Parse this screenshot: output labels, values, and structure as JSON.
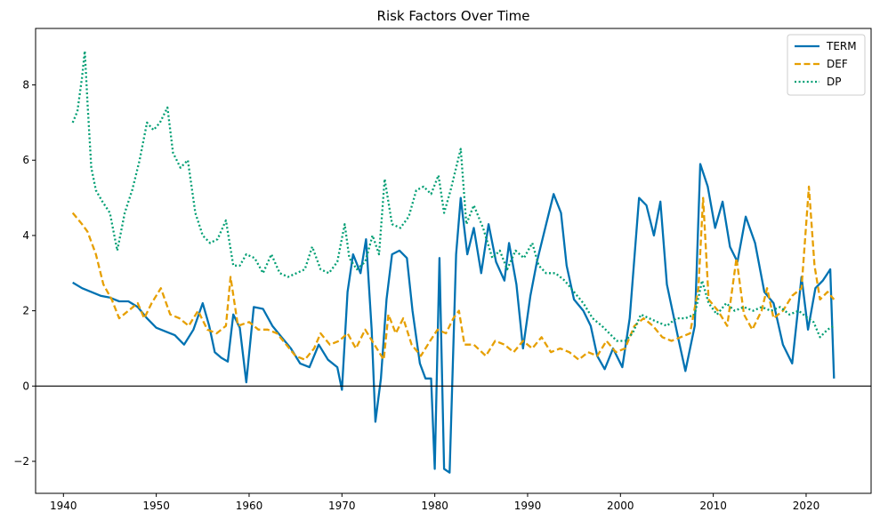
{
  "chart_data": {
    "type": "line",
    "title": "Risk Factors Over Time",
    "xlabel": "",
    "ylabel": "",
    "xlim": [
      1937,
      2027
    ],
    "ylim": [
      -2.85,
      9.5
    ],
    "x_ticks": [
      1940,
      1950,
      1960,
      1970,
      1980,
      1990,
      2000,
      2010,
      2020
    ],
    "y_ticks": [
      -2,
      0,
      2,
      4,
      6,
      8
    ],
    "x_tick_labels": [
      "1940",
      "1950",
      "1960",
      "1970",
      "1980",
      "1990",
      "2000",
      "2010",
      "2020"
    ],
    "y_tick_labels": [
      "−2",
      "0",
      "2",
      "4",
      "6",
      "8"
    ],
    "zero_line": 0,
    "grid": false,
    "legend_position": "top-right",
    "series": [
      {
        "name": "TERM",
        "color": "#0072b2",
        "style": "solid",
        "points": [
          [
            1941,
            2.75
          ],
          [
            1942,
            2.6
          ],
          [
            1943,
            2.5
          ],
          [
            1944,
            2.4
          ],
          [
            1945,
            2.35
          ],
          [
            1946,
            2.25
          ],
          [
            1947,
            2.25
          ],
          [
            1948,
            2.1
          ],
          [
            1949,
            1.8
          ],
          [
            1950,
            1.55
          ],
          [
            1951,
            1.45
          ],
          [
            1952,
            1.35
          ],
          [
            1953,
            1.1
          ],
          [
            1954,
            1.5
          ],
          [
            1955,
            2.2
          ],
          [
            1955.7,
            1.6
          ],
          [
            1956.3,
            0.9
          ],
          [
            1957,
            0.75
          ],
          [
            1957.7,
            0.65
          ],
          [
            1958.3,
            1.9
          ],
          [
            1959,
            1.55
          ],
          [
            1959.7,
            0.1
          ],
          [
            1960.5,
            2.1
          ],
          [
            1961.5,
            2.05
          ],
          [
            1962.5,
            1.6
          ],
          [
            1963.5,
            1.3
          ],
          [
            1964.5,
            1.0
          ],
          [
            1965.5,
            0.6
          ],
          [
            1966.5,
            0.5
          ],
          [
            1967.5,
            1.1
          ],
          [
            1968.5,
            0.7
          ],
          [
            1969.5,
            0.5
          ],
          [
            1970,
            -0.1
          ],
          [
            1970.6,
            2.5
          ],
          [
            1971.2,
            3.5
          ],
          [
            1972,
            3.0
          ],
          [
            1972.6,
            3.9
          ],
          [
            1973.2,
            1.5
          ],
          [
            1973.6,
            -0.95
          ],
          [
            1974.2,
            0.2
          ],
          [
            1974.8,
            2.3
          ],
          [
            1975.4,
            3.5
          ],
          [
            1976.2,
            3.6
          ],
          [
            1977,
            3.4
          ],
          [
            1977.6,
            2.0
          ],
          [
            1978.4,
            0.6
          ],
          [
            1979,
            0.2
          ],
          [
            1979.6,
            0.2
          ],
          [
            1980,
            -2.2
          ],
          [
            1980.5,
            3.4
          ],
          [
            1981,
            -2.2
          ],
          [
            1981.6,
            -2.3
          ],
          [
            1982.3,
            3.5
          ],
          [
            1982.8,
            5.0
          ],
          [
            1983.5,
            3.5
          ],
          [
            1984.2,
            4.2
          ],
          [
            1985,
            3.0
          ],
          [
            1985.8,
            4.3
          ],
          [
            1986.6,
            3.3
          ],
          [
            1987.5,
            2.8
          ],
          [
            1988,
            3.8
          ],
          [
            1988.8,
            2.7
          ],
          [
            1989.5,
            1.0
          ],
          [
            1990.3,
            2.4
          ],
          [
            1991,
            3.3
          ],
          [
            1992,
            4.3
          ],
          [
            1992.8,
            5.1
          ],
          [
            1993.6,
            4.6
          ],
          [
            1994.2,
            3.2
          ],
          [
            1995,
            2.3
          ],
          [
            1996,
            2.0
          ],
          [
            1996.8,
            1.6
          ],
          [
            1997.5,
            0.8
          ],
          [
            1998.3,
            0.45
          ],
          [
            1999.2,
            1.0
          ],
          [
            2000.2,
            0.5
          ],
          [
            2001,
            1.8
          ],
          [
            2002,
            5.0
          ],
          [
            2002.8,
            4.8
          ],
          [
            2003.6,
            4.0
          ],
          [
            2004.3,
            4.9
          ],
          [
            2005,
            2.7
          ],
          [
            2006.2,
            1.3
          ],
          [
            2007,
            0.4
          ],
          [
            2008,
            1.6
          ],
          [
            2008.6,
            5.9
          ],
          [
            2009.4,
            5.3
          ],
          [
            2010.2,
            4.2
          ],
          [
            2011,
            4.9
          ],
          [
            2011.8,
            3.7
          ],
          [
            2012.6,
            3.3
          ],
          [
            2013.5,
            4.5
          ],
          [
            2014.5,
            3.8
          ],
          [
            2015.5,
            2.5
          ],
          [
            2016.5,
            2.2
          ],
          [
            2017.5,
            1.1
          ],
          [
            2018.5,
            0.6
          ],
          [
            2019.5,
            2.9
          ],
          [
            2020.2,
            1.5
          ],
          [
            2021,
            2.6
          ],
          [
            2021.8,
            2.8
          ],
          [
            2022.6,
            3.1
          ],
          [
            2023,
            0.2
          ]
        ]
      },
      {
        "name": "DEF",
        "color": "#e69f00",
        "style": "dashed",
        "points": [
          [
            1941,
            4.6
          ],
          [
            1942,
            4.3
          ],
          [
            1942.6,
            4.1
          ],
          [
            1943.5,
            3.5
          ],
          [
            1944.3,
            2.7
          ],
          [
            1945.2,
            2.3
          ],
          [
            1946,
            1.8
          ],
          [
            1947,
            2.0
          ],
          [
            1948,
            2.2
          ],
          [
            1948.7,
            1.8
          ],
          [
            1949.5,
            2.2
          ],
          [
            1950.5,
            2.6
          ],
          [
            1951.5,
            1.9
          ],
          [
            1952.5,
            1.8
          ],
          [
            1953.5,
            1.6
          ],
          [
            1954.5,
            2.0
          ],
          [
            1955.5,
            1.5
          ],
          [
            1956.5,
            1.4
          ],
          [
            1957.5,
            1.6
          ],
          [
            1958,
            2.9
          ],
          [
            1958.8,
            1.6
          ],
          [
            1960,
            1.7
          ],
          [
            1961,
            1.5
          ],
          [
            1962,
            1.5
          ],
          [
            1963,
            1.4
          ],
          [
            1964,
            1.1
          ],
          [
            1965,
            0.8
          ],
          [
            1966,
            0.7
          ],
          [
            1967,
            1.0
          ],
          [
            1967.7,
            1.4
          ],
          [
            1968.7,
            1.1
          ],
          [
            1969.7,
            1.2
          ],
          [
            1970.6,
            1.4
          ],
          [
            1971.5,
            1.0
          ],
          [
            1972.5,
            1.5
          ],
          [
            1973.5,
            1.1
          ],
          [
            1974.5,
            0.7
          ],
          [
            1975,
            1.9
          ],
          [
            1975.8,
            1.4
          ],
          [
            1976.6,
            1.8
          ],
          [
            1977.5,
            1.1
          ],
          [
            1978.5,
            0.8
          ],
          [
            1979.5,
            1.2
          ],
          [
            1980.3,
            1.5
          ],
          [
            1981.2,
            1.4
          ],
          [
            1982,
            1.8
          ],
          [
            1982.6,
            2.0
          ],
          [
            1983.2,
            1.1
          ],
          [
            1984.2,
            1.1
          ],
          [
            1985.5,
            0.8
          ],
          [
            1986.5,
            1.2
          ],
          [
            1987.5,
            1.1
          ],
          [
            1988.5,
            0.9
          ],
          [
            1989.5,
            1.2
          ],
          [
            1990.5,
            1.0
          ],
          [
            1991.5,
            1.3
          ],
          [
            1992.5,
            0.9
          ],
          [
            1993.5,
            1.0
          ],
          [
            1994.5,
            0.9
          ],
          [
            1995.5,
            0.7
          ],
          [
            1996.5,
            0.9
          ],
          [
            1997.5,
            0.8
          ],
          [
            1998.5,
            1.2
          ],
          [
            1999.5,
            0.9
          ],
          [
            2000.5,
            1.0
          ],
          [
            2001.5,
            1.6
          ],
          [
            2002.5,
            1.8
          ],
          [
            2003.5,
            1.6
          ],
          [
            2004.5,
            1.3
          ],
          [
            2005.5,
            1.2
          ],
          [
            2006.5,
            1.3
          ],
          [
            2007.5,
            1.4
          ],
          [
            2008.4,
            2.6
          ],
          [
            2008.9,
            5.0
          ],
          [
            2009.5,
            2.3
          ],
          [
            2010.5,
            2.0
          ],
          [
            2011.5,
            1.6
          ],
          [
            2012.5,
            3.4
          ],
          [
            2013.3,
            1.9
          ],
          [
            2014.2,
            1.5
          ],
          [
            2015.2,
            2.0
          ],
          [
            2015.8,
            2.6
          ],
          [
            2016.5,
            1.8
          ],
          [
            2017.5,
            2.0
          ],
          [
            2018.5,
            2.4
          ],
          [
            2019.5,
            2.6
          ],
          [
            2020.3,
            5.3
          ],
          [
            2020.9,
            3.2
          ],
          [
            2021.5,
            2.3
          ],
          [
            2022.3,
            2.5
          ],
          [
            2023,
            2.3
          ]
        ]
      },
      {
        "name": "DP",
        "color": "#009e73",
        "style": "dotted",
        "points": [
          [
            1941,
            7.0
          ],
          [
            1941.5,
            7.3
          ],
          [
            1942,
            8.2
          ],
          [
            1942.3,
            8.9
          ],
          [
            1942.6,
            7.5
          ],
          [
            1943,
            5.8
          ],
          [
            1943.5,
            5.2
          ],
          [
            1944.2,
            4.9
          ],
          [
            1945,
            4.6
          ],
          [
            1945.8,
            3.6
          ],
          [
            1946.6,
            4.6
          ],
          [
            1947.4,
            5.2
          ],
          [
            1948.2,
            6.0
          ],
          [
            1949,
            7.0
          ],
          [
            1949.7,
            6.8
          ],
          [
            1950.4,
            7.0
          ],
          [
            1951.2,
            7.4
          ],
          [
            1951.8,
            6.2
          ],
          [
            1952.6,
            5.8
          ],
          [
            1953.4,
            6.0
          ],
          [
            1954.2,
            4.6
          ],
          [
            1955,
            4.0
          ],
          [
            1955.8,
            3.8
          ],
          [
            1956.6,
            3.9
          ],
          [
            1957.5,
            4.4
          ],
          [
            1958.3,
            3.2
          ],
          [
            1959,
            3.2
          ],
          [
            1959.7,
            3.5
          ],
          [
            1960.6,
            3.4
          ],
          [
            1961.5,
            3.0
          ],
          [
            1962.4,
            3.5
          ],
          [
            1963.3,
            3.0
          ],
          [
            1964.2,
            2.9
          ],
          [
            1965.1,
            3.0
          ],
          [
            1966,
            3.1
          ],
          [
            1966.8,
            3.7
          ],
          [
            1967.7,
            3.1
          ],
          [
            1968.6,
            3.0
          ],
          [
            1969.5,
            3.3
          ],
          [
            1970.3,
            4.3
          ],
          [
            1970.8,
            3.4
          ],
          [
            1971.6,
            3.1
          ],
          [
            1972.5,
            3.3
          ],
          [
            1973.3,
            4.0
          ],
          [
            1974,
            3.5
          ],
          [
            1974.6,
            5.5
          ],
          [
            1975.4,
            4.3
          ],
          [
            1976.3,
            4.2
          ],
          [
            1977.2,
            4.5
          ],
          [
            1978,
            5.2
          ],
          [
            1978.8,
            5.3
          ],
          [
            1979.6,
            5.1
          ],
          [
            1980.4,
            5.6
          ],
          [
            1981,
            4.6
          ],
          [
            1981.7,
            5.2
          ],
          [
            1982.3,
            5.8
          ],
          [
            1982.8,
            6.3
          ],
          [
            1983.4,
            4.3
          ],
          [
            1984.2,
            4.8
          ],
          [
            1985.2,
            4.2
          ],
          [
            1986.2,
            3.4
          ],
          [
            1987,
            3.6
          ],
          [
            1987.8,
            3.1
          ],
          [
            1988.7,
            3.6
          ],
          [
            1989.6,
            3.4
          ],
          [
            1990.5,
            3.8
          ],
          [
            1991.2,
            3.2
          ],
          [
            1992,
            3.0
          ],
          [
            1993,
            3.0
          ],
          [
            1994,
            2.8
          ],
          [
            1995,
            2.5
          ],
          [
            1996,
            2.2
          ],
          [
            1997,
            1.8
          ],
          [
            1998,
            1.6
          ],
          [
            1998.8,
            1.4
          ],
          [
            1999.6,
            1.2
          ],
          [
            2000.5,
            1.2
          ],
          [
            2001.3,
            1.4
          ],
          [
            2002.2,
            1.9
          ],
          [
            2003.1,
            1.8
          ],
          [
            2004,
            1.7
          ],
          [
            2005,
            1.6
          ],
          [
            2006,
            1.8
          ],
          [
            2007,
            1.8
          ],
          [
            2008,
            1.9
          ],
          [
            2008.8,
            2.8
          ],
          [
            2009.5,
            2.2
          ],
          [
            2010.4,
            1.9
          ],
          [
            2011.4,
            2.2
          ],
          [
            2012.3,
            2.0
          ],
          [
            2013.3,
            2.1
          ],
          [
            2014.3,
            2.0
          ],
          [
            2015.2,
            2.1
          ],
          [
            2016.2,
            2.0
          ],
          [
            2017.2,
            2.1
          ],
          [
            2018.2,
            1.9
          ],
          [
            2019.2,
            2.0
          ],
          [
            2020.2,
            1.8
          ],
          [
            2020.8,
            1.7
          ],
          [
            2021.5,
            1.3
          ],
          [
            2022.3,
            1.5
          ],
          [
            2023,
            1.6
          ]
        ]
      }
    ]
  }
}
